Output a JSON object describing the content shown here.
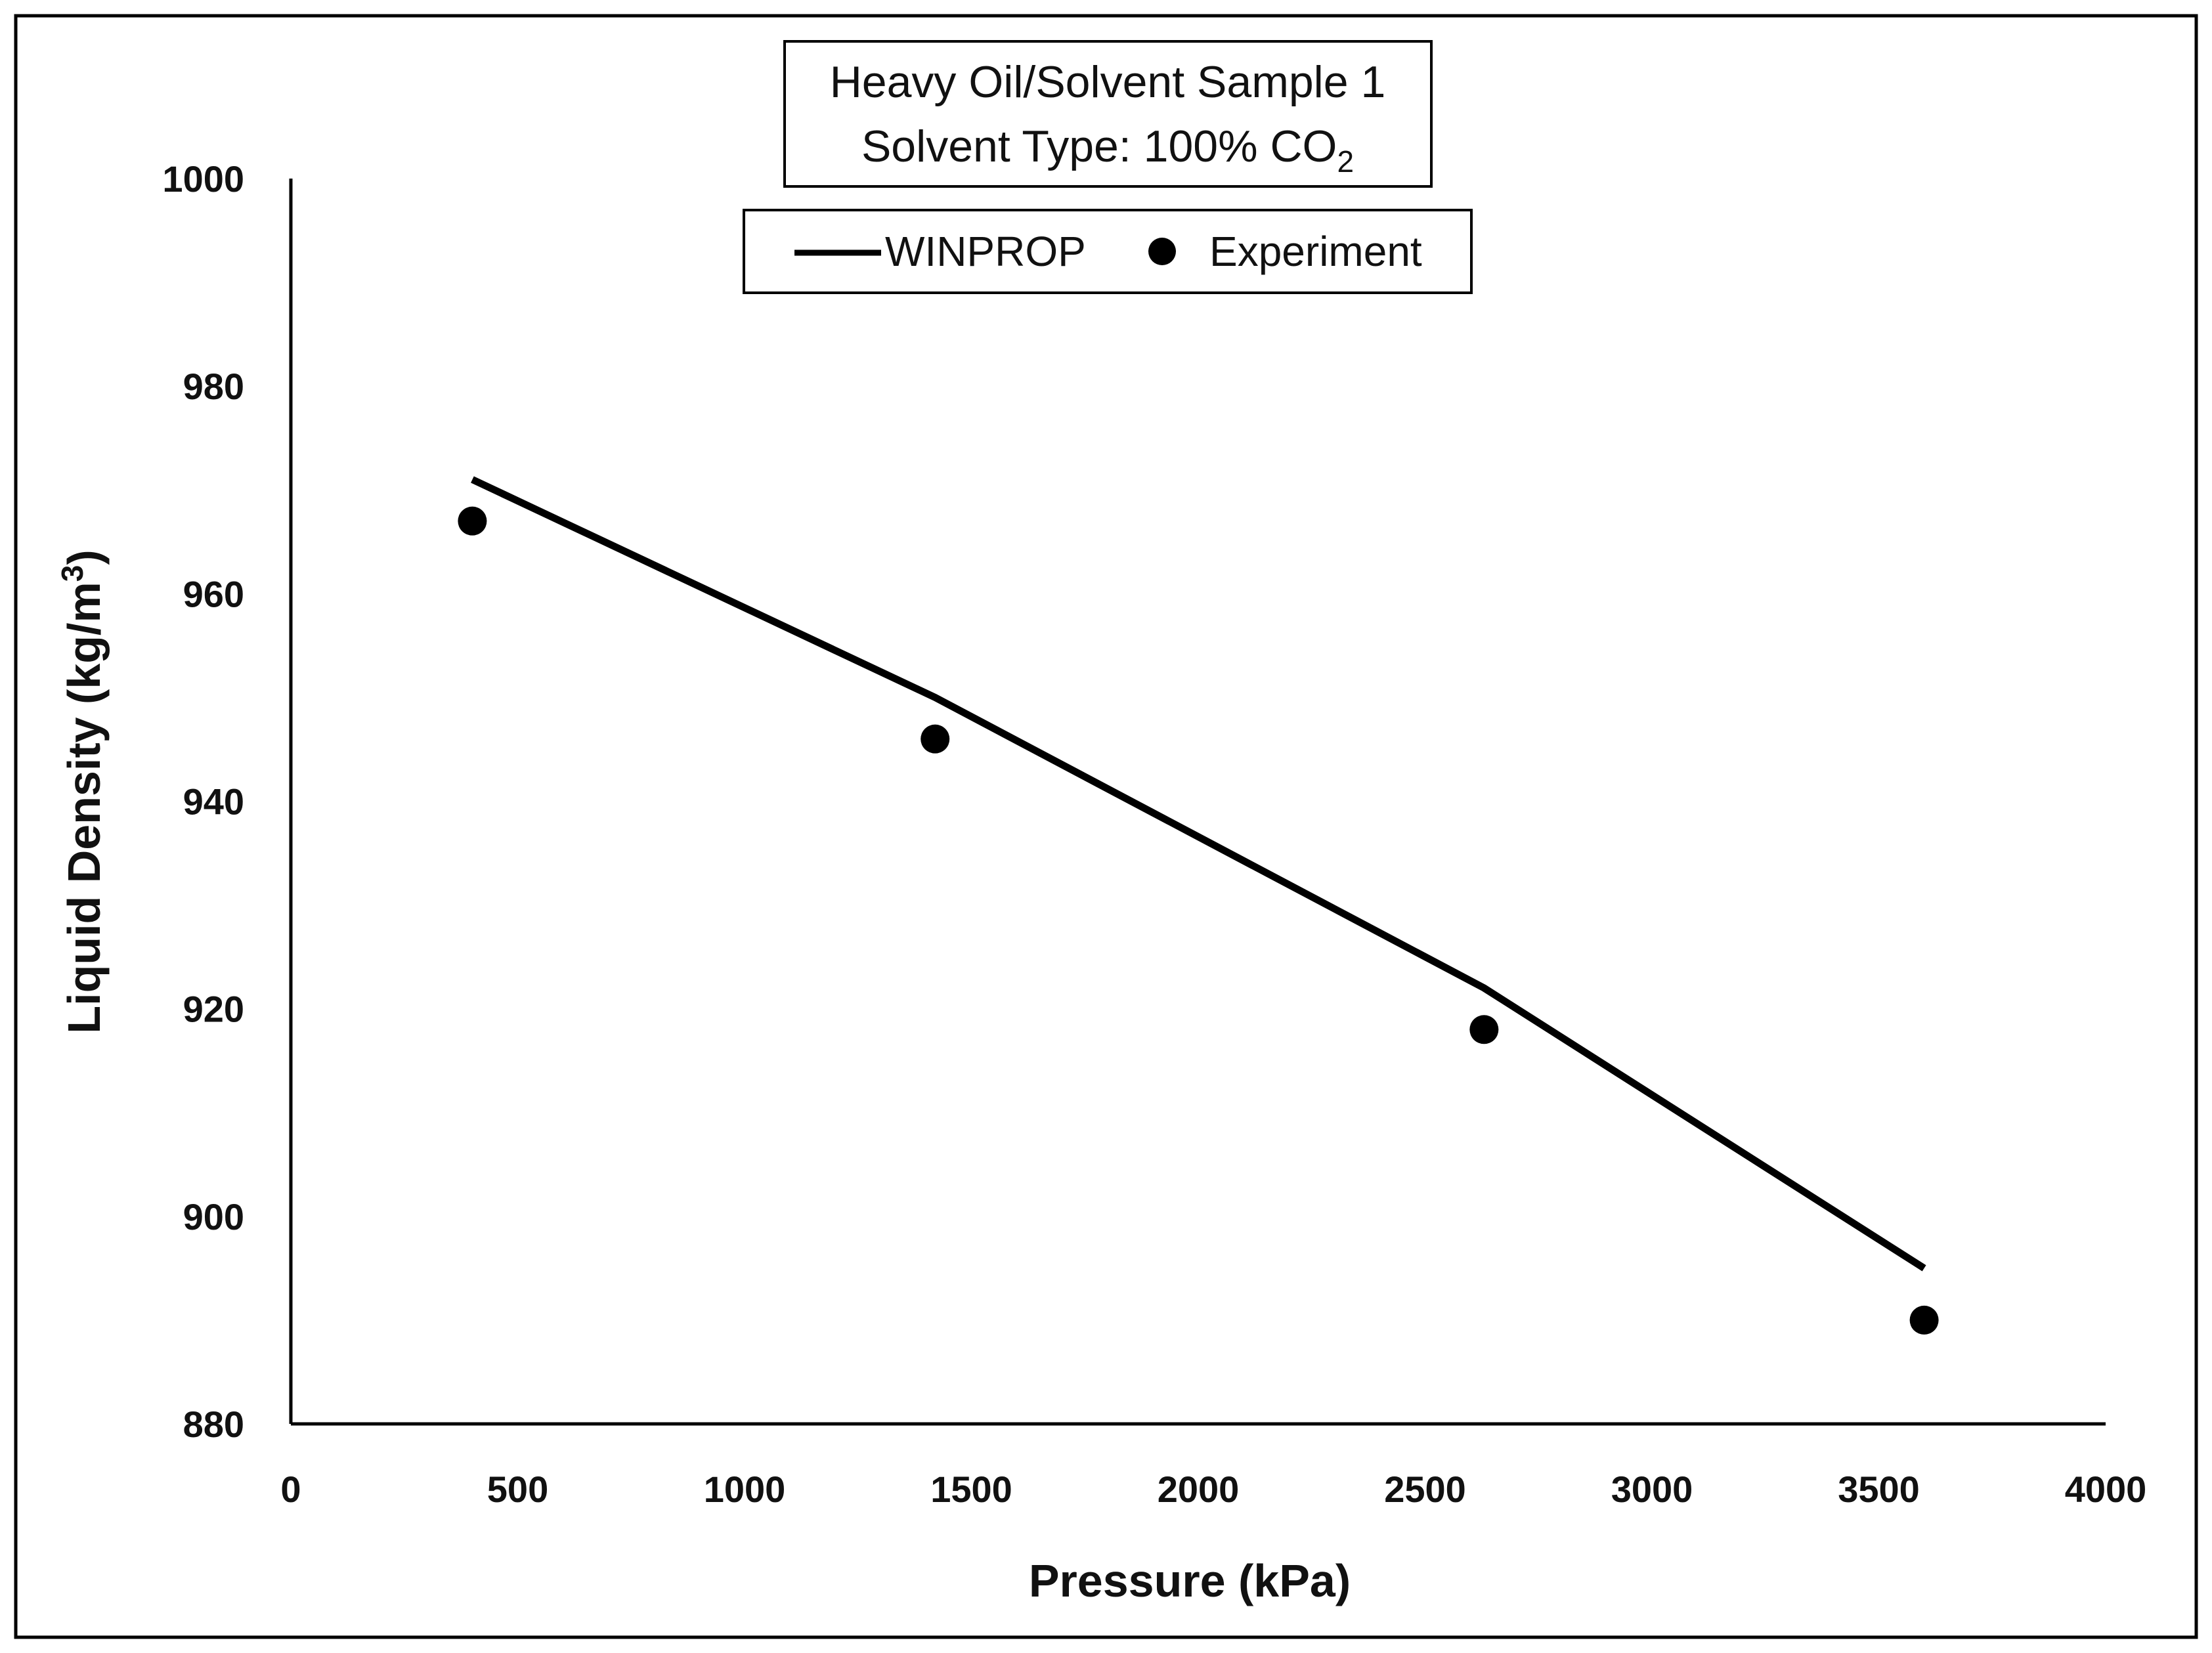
{
  "chart_data": {
    "type": "line",
    "title_lines": [
      "Heavy Oil/Solvent Sample 1",
      "Solvent Type: 100% CO"
    ],
    "title_subscript": "2",
    "xlabel": "Pressure (kPa)",
    "ylabel": "Liquid Density (kg/m",
    "ylabel_superscript": "3",
    "ylabel_close": ")",
    "xlim": [
      0,
      4000
    ],
    "ylim": [
      880,
      1000
    ],
    "xticks": [
      0,
      500,
      1000,
      1500,
      2000,
      2500,
      3000,
      3500,
      4000
    ],
    "xtick_labels": [
      "0",
      "500",
      "1000",
      "1500",
      "2000",
      "2500",
      "3000",
      "3500",
      "4000"
    ],
    "yticks": [
      880,
      900,
      920,
      940,
      960,
      980,
      1000
    ],
    "ytick_labels": [
      "880",
      "900",
      "920",
      "940",
      "960",
      "980",
      "1000"
    ],
    "grid": false,
    "legend_position": "top-center",
    "series": [
      {
        "name": "WINPROP",
        "kind": "line",
        "color": "#000000",
        "x": [
          400,
          1420,
          2630,
          3600
        ],
        "y": [
          971,
          950,
          922,
          895
        ]
      },
      {
        "name": "Experiment",
        "kind": "scatter",
        "color": "#000000",
        "x": [
          400,
          1420,
          2630,
          3600
        ],
        "y": [
          967,
          946,
          918,
          890
        ]
      }
    ]
  }
}
